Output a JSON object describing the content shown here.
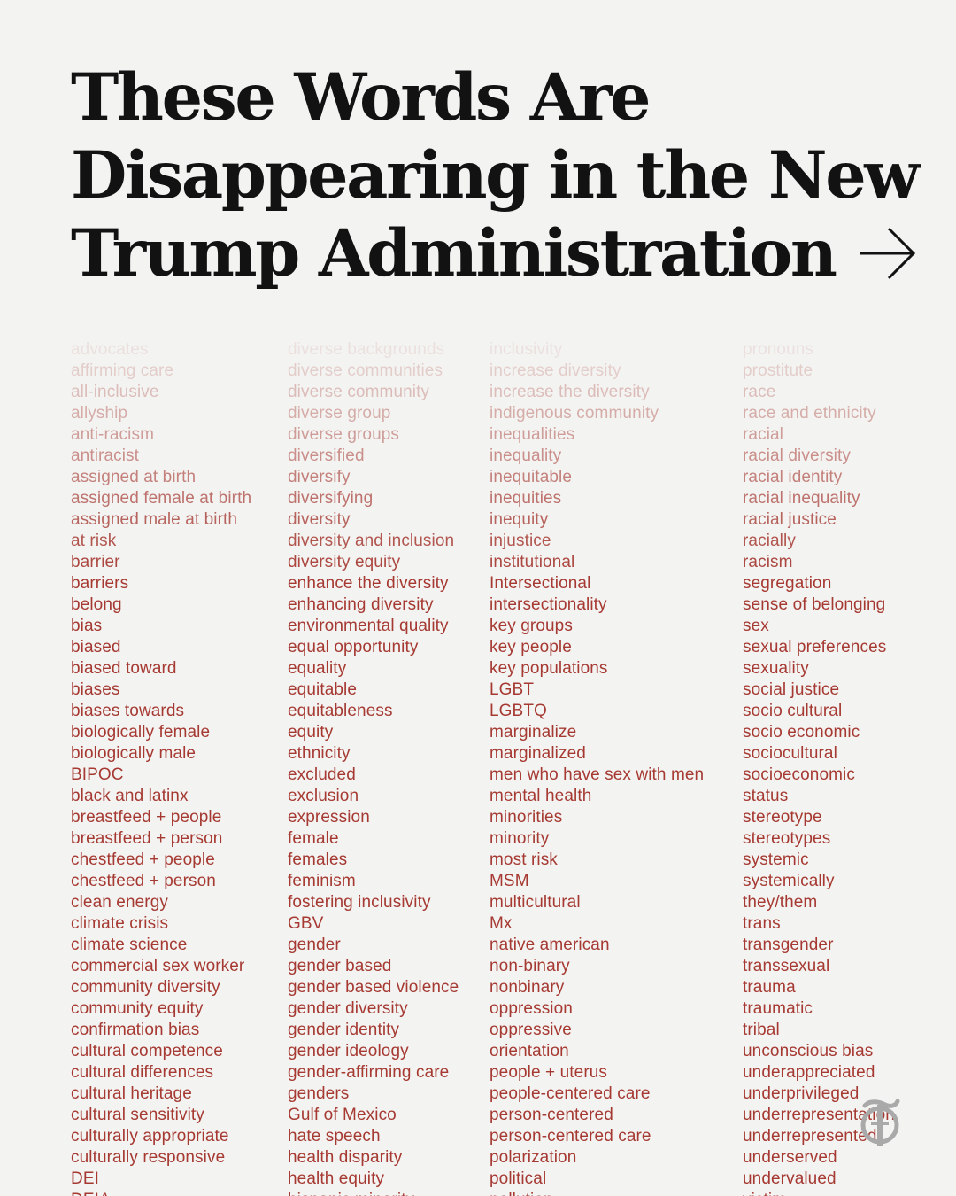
{
  "headline": {
    "line1": "These Words Are",
    "line2": "Disappearing in the New",
    "line3": "Trump Administration"
  },
  "icons": {
    "arrow": "arrow-right-icon",
    "logo": "nyt-t-logo"
  },
  "colors": {
    "background": "#f3f3f1",
    "headline": "#121212",
    "word": "#a63a33"
  },
  "columns": [
    {
      "words": [
        "advocates",
        "affirming care",
        "all-inclusive",
        "allyship",
        "anti-racism",
        "antiracist",
        "assigned at birth",
        "assigned female at birth",
        "assigned male at birth",
        "at risk",
        "barrier",
        "barriers",
        "belong",
        "bias",
        "biased",
        "biased toward",
        "biases",
        "biases towards",
        "biologically female",
        "biologically male",
        "BIPOC",
        "black and latinx",
        "breastfeed + people",
        "breastfeed + person",
        "chestfeed + people",
        "chestfeed + person",
        "clean energy",
        "climate crisis",
        "climate science",
        "commercial sex worker",
        "community diversity",
        "community equity",
        "confirmation bias",
        "cultural competence",
        "cultural differences",
        "cultural heritage",
        "cultural sensitivity",
        "culturally appropriate",
        "culturally responsive",
        "DEI",
        "DEIA"
      ]
    },
    {
      "words": [
        "diverse backgrounds",
        "diverse communities",
        "diverse community",
        "diverse group",
        "diverse groups",
        "diversified",
        "diversify",
        "diversifying",
        "diversity",
        "diversity and inclusion",
        "diversity equity",
        "enhance the diversity",
        "enhancing diversity",
        "environmental quality",
        "equal opportunity",
        "equality",
        "equitable",
        "equitableness",
        "equity",
        "ethnicity",
        "excluded",
        "exclusion",
        "expression",
        "female",
        "females",
        "feminism",
        "fostering inclusivity",
        "GBV",
        "gender",
        "gender based",
        "gender based violence",
        "gender diversity",
        "gender identity",
        "gender ideology",
        "gender-affirming care",
        "genders",
        "Gulf of Mexico",
        "hate speech",
        "health disparity",
        "health equity",
        "hispanic minority"
      ]
    },
    {
      "words": [
        "inclusivity",
        "increase diversity",
        "increase the diversity",
        "indigenous community",
        "inequalities",
        "inequality",
        "inequitable",
        "inequities",
        "inequity",
        "injustice",
        "institutional",
        "Intersectional",
        "intersectionality",
        "key groups",
        "key people",
        "key populations",
        "LGBT",
        "LGBTQ",
        "marginalize",
        "marginalized",
        "men who have sex with men",
        "mental health",
        "minorities",
        "minority",
        "most risk",
        "MSM",
        "multicultural",
        "Mx",
        "native american",
        "non-binary",
        "nonbinary",
        "oppression",
        "oppressive",
        "orientation",
        "people + uterus",
        "people-centered care",
        "person-centered",
        "person-centered care",
        "polarization",
        "political",
        "pollution"
      ]
    },
    {
      "words": [
        "pronouns",
        "prostitute",
        "race",
        "race and ethnicity",
        "racial",
        "racial diversity",
        "racial identity",
        "racial inequality",
        "racial justice",
        "racially",
        "racism",
        "segregation",
        "sense of belonging",
        "sex",
        "sexual preferences",
        "sexuality",
        "social justice",
        "socio cultural",
        "socio economic",
        "sociocultural",
        "socioeconomic",
        "status",
        "stereotype",
        "stereotypes",
        "systemic",
        "systemically",
        "they/them",
        "trans",
        "transgender",
        "transsexual",
        "trauma",
        "traumatic",
        "tribal",
        "unconscious bias",
        "underappreciated",
        "underprivileged",
        "underrepresentation",
        "underrepresented",
        "underserved",
        "undervalued",
        "victim"
      ]
    }
  ]
}
